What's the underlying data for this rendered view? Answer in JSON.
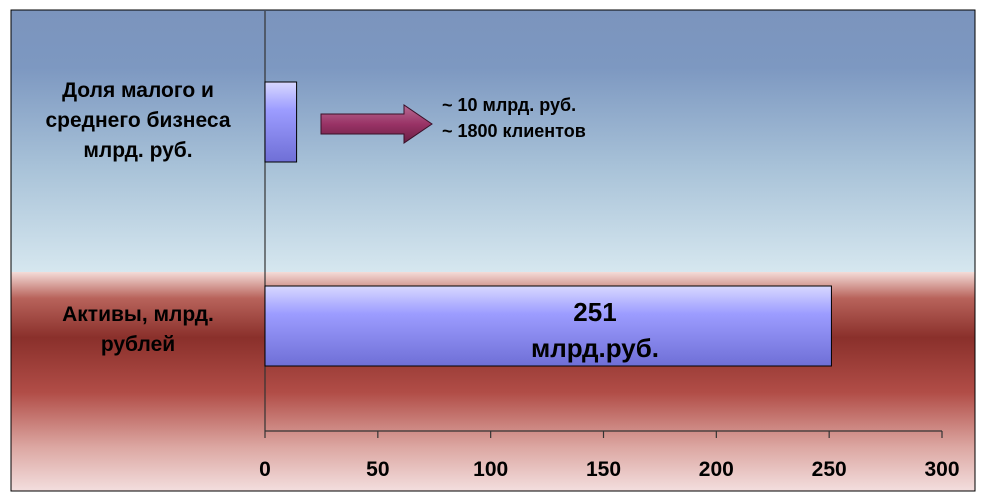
{
  "chart_data": {
    "type": "bar",
    "orientation": "horizontal",
    "categories": [
      [
        "Доля малого и",
        "среднего бизнеса",
        "млрд. руб."
      ],
      [
        "Активы, млрд.",
        "рублей"
      ]
    ],
    "values": [
      14,
      251
    ],
    "data_labels": [
      "",
      "251 млрд.руб."
    ],
    "xlim": [
      0,
      300
    ],
    "x_ticks": [
      0,
      50,
      100,
      150,
      200,
      250,
      300
    ],
    "annotation": [
      "~ 10 млрд. руб.",
      "~ 1800 клиентов"
    ],
    "grid": false,
    "legend": "none"
  },
  "labels": {
    "category_1_line1": "Доля малого и",
    "category_1_line2": "среднего бизнеса",
    "category_1_line3": "млрд. руб.",
    "category_2_line1": "Активы, млрд.",
    "category_2_line2": "рублей",
    "bar_2_value_line1": "251",
    "bar_2_value_line2": "млрд.руб.",
    "annotation_line1": "~ 10 млрд. руб.",
    "annotation_line2": "~ 1800 клиентов"
  },
  "colors": {
    "band_top": "#7c97c0",
    "band_bottom": "#903a36",
    "bar_fill": "#9999ff",
    "arrow_fill": "#993366"
  }
}
